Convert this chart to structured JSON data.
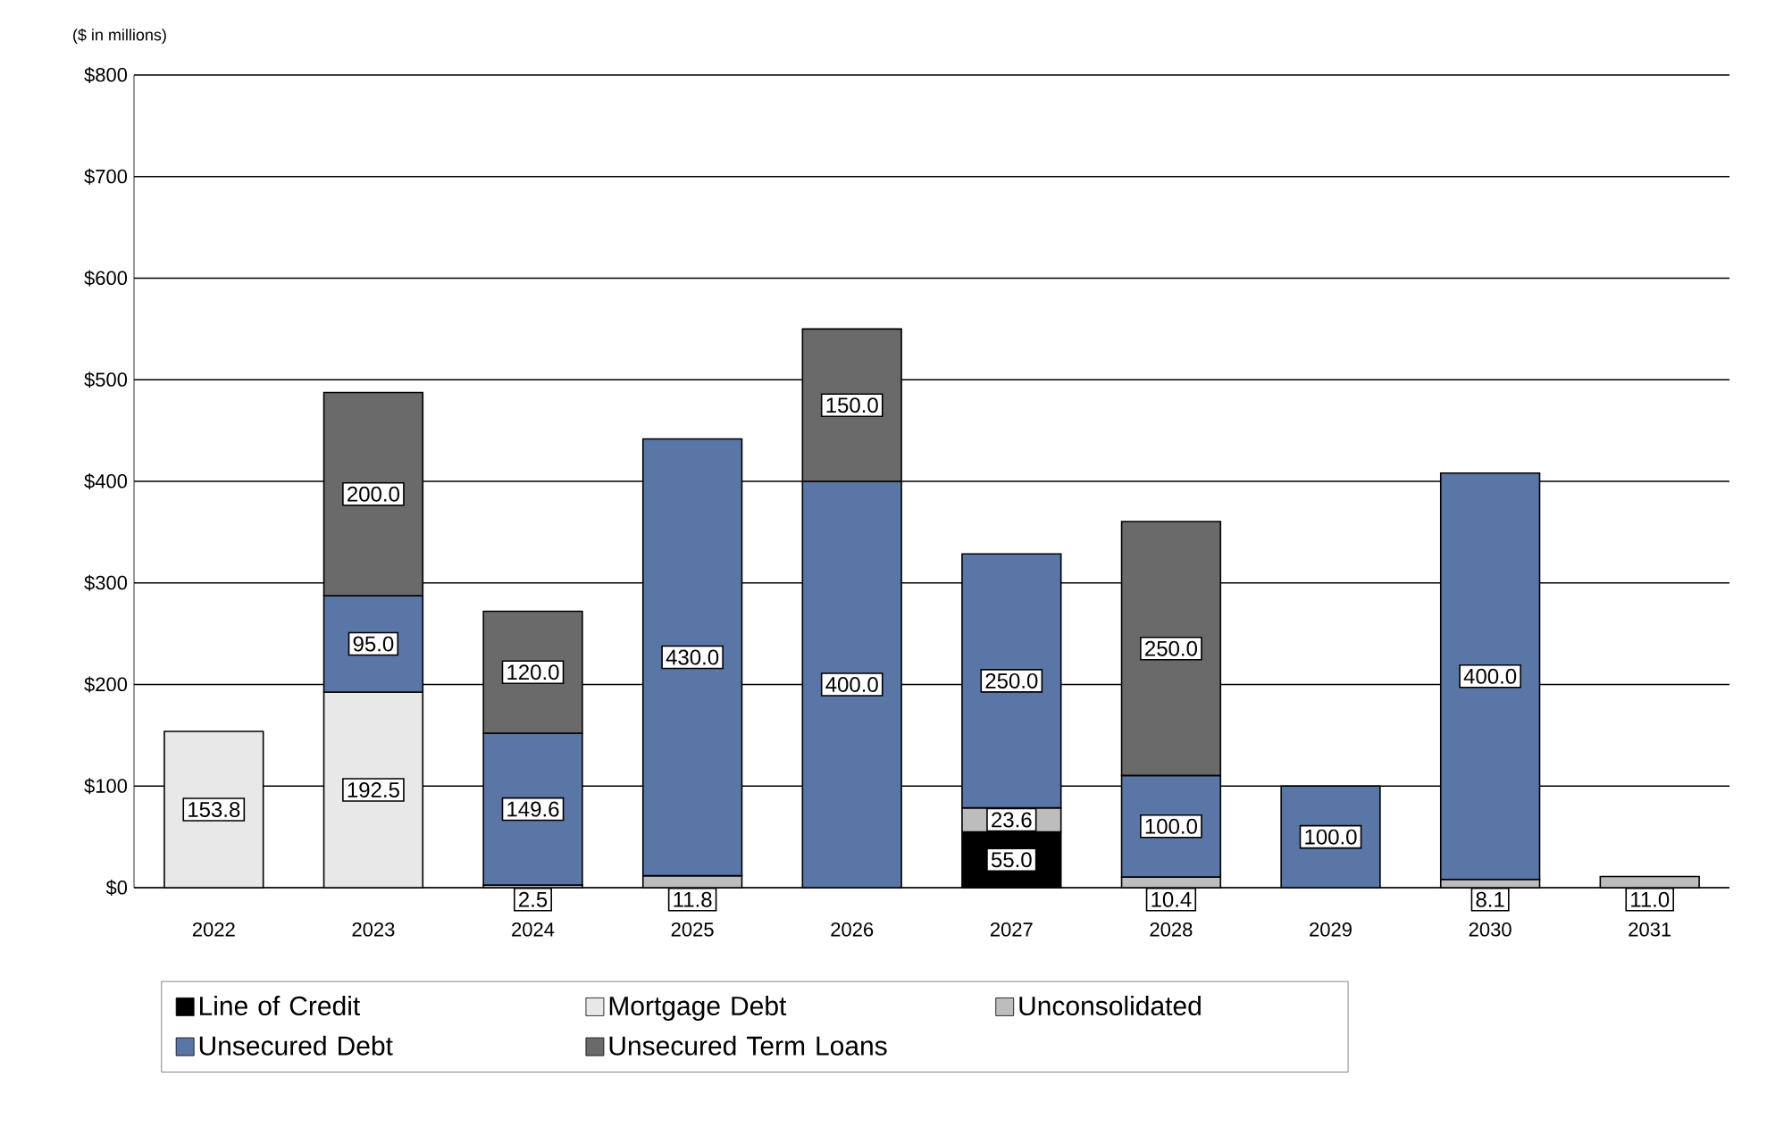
{
  "chart_data": {
    "type": "bar",
    "stacked": true,
    "grid": "y",
    "legend": "bottom",
    "ylabel": "($ in millions)",
    "categories": [
      "2022",
      "2023",
      "2024",
      "2025",
      "2026",
      "2027",
      "2028",
      "2029",
      "2030",
      "2031"
    ],
    "ylim": [
      0,
      800
    ],
    "yticks": [
      {
        "value": 0,
        "label": "$0"
      },
      {
        "value": 100,
        "label": "$100"
      },
      {
        "value": 200,
        "label": "$200"
      },
      {
        "value": 300,
        "label": "$300"
      },
      {
        "value": 400,
        "label": "$400"
      },
      {
        "value": 500,
        "label": "$500"
      },
      {
        "value": 600,
        "label": "$600"
      },
      {
        "value": 700,
        "label": "$700"
      },
      {
        "value": 800,
        "label": "$800"
      }
    ],
    "series": [
      {
        "name": "Line of Credit",
        "color": "#000000",
        "values": [
          null,
          null,
          null,
          null,
          null,
          55.0,
          null,
          null,
          null,
          null
        ],
        "value_labels": [
          null,
          null,
          null,
          null,
          null,
          "55.0",
          null,
          null,
          null,
          null
        ]
      },
      {
        "name": "Mortgage Debt",
        "color": "#e8e8e8",
        "values": [
          153.8,
          192.5,
          null,
          null,
          null,
          null,
          null,
          null,
          null,
          null
        ],
        "value_labels": [
          "153.8",
          "192.5",
          null,
          null,
          null,
          null,
          null,
          null,
          null,
          null
        ]
      },
      {
        "name": "Unconsolidated",
        "color": "#bdbdbd",
        "values": [
          null,
          null,
          2.5,
          11.8,
          null,
          23.6,
          10.4,
          null,
          8.1,
          11.0
        ],
        "value_labels": [
          null,
          null,
          "2.5",
          "11.8",
          null,
          "23.6",
          "10.4",
          null,
          "8.1",
          "11.0"
        ]
      },
      {
        "name": "Unsecured Debt",
        "color": "#5a76a6",
        "values": [
          null,
          95.0,
          149.6,
          430.0,
          400.0,
          250.0,
          100.0,
          100.0,
          400.0,
          null
        ],
        "value_labels": [
          null,
          "95.0",
          "149.6",
          "430.0",
          "400.0",
          "250.0",
          "100.0",
          "100.0",
          "400.0",
          null
        ]
      },
      {
        "name": "Unsecured Term Loans",
        "color": "#6a6a6a",
        "values": [
          null,
          200.0,
          120.0,
          null,
          150.0,
          null,
          250.0,
          null,
          null,
          null
        ],
        "value_labels": [
          null,
          "200.0",
          "120.0",
          null,
          "150.0",
          null,
          "250.0",
          null,
          null,
          null
        ]
      }
    ]
  }
}
